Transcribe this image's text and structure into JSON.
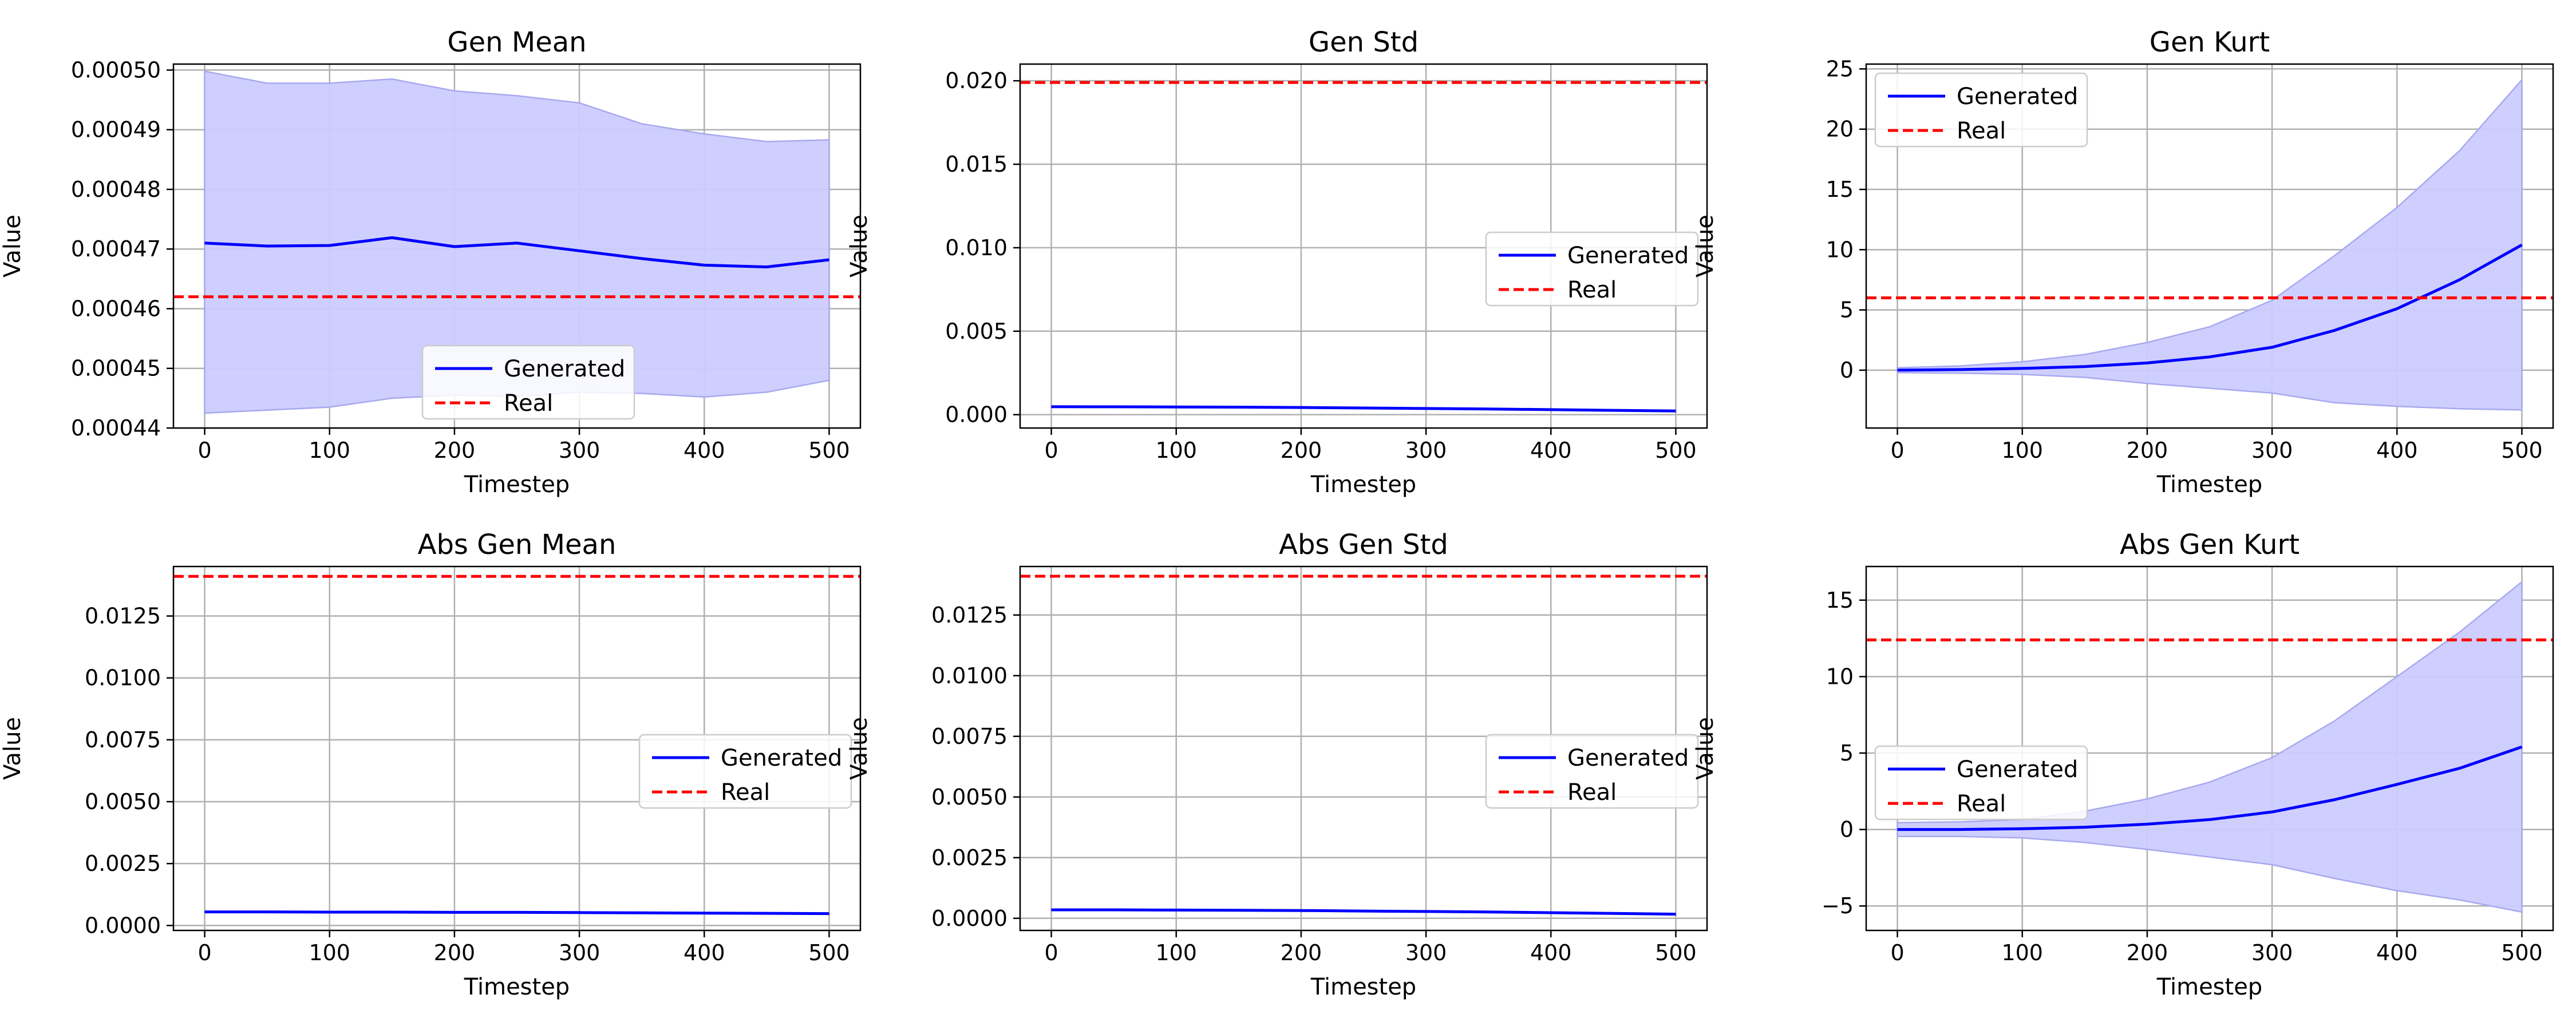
{
  "colors": {
    "generated": "#0000ff",
    "band": "#ccccff",
    "band_edge": "#a8a8f0",
    "real": "#ff0000",
    "grid": "#b0b0b0"
  },
  "chart_data": [
    {
      "type": "line",
      "title": "Gen Mean",
      "xlabel": "Timestep",
      "ylabel": "Value",
      "xlim": [
        -25,
        525
      ],
      "ylim": [
        0.00044,
        0.000501
      ],
      "xticks": [
        0,
        100,
        200,
        300,
        400,
        500
      ],
      "xtick_labels": [
        "0",
        "100",
        "200",
        "300",
        "400",
        "500"
      ],
      "yticks": [
        0.00044,
        0.00045,
        0.00046,
        0.00047,
        0.00048,
        0.00049,
        0.0005
      ],
      "ytick_labels": [
        "0.00044",
        "0.00045",
        "0.00046",
        "0.00047",
        "0.00048",
        "0.00049",
        "0.00050"
      ],
      "grid": true,
      "legend_position": "lower-center",
      "x": [
        0,
        50,
        100,
        150,
        200,
        250,
        300,
        350,
        400,
        450,
        500
      ],
      "series": [
        {
          "name": "Generated",
          "style": "solid",
          "values": [
            0.000471,
            0.0004705,
            0.0004706,
            0.0004719,
            0.0004704,
            0.000471,
            0.0004697,
            0.0004684,
            0.0004673,
            0.000467,
            0.0004682
          ],
          "band_lower": [
            0.0004425,
            0.000443,
            0.0004435,
            0.000445,
            0.0004455,
            0.0004453,
            0.000446,
            0.0004458,
            0.0004452,
            0.000446,
            0.000448
          ],
          "band_upper": [
            0.0004998,
            0.0004978,
            0.0004978,
            0.0004985,
            0.0004965,
            0.0004957,
            0.0004945,
            0.000491,
            0.0004893,
            0.000488,
            0.0004883
          ]
        },
        {
          "name": "Real",
          "style": "dashed",
          "constant": 0.000462
        }
      ]
    },
    {
      "type": "line",
      "title": "Gen Std",
      "xlabel": "Timestep",
      "ylabel": "Value",
      "xlim": [
        -25,
        525
      ],
      "ylim": [
        -0.0008,
        0.021
      ],
      "xticks": [
        0,
        100,
        200,
        300,
        400,
        500
      ],
      "xtick_labels": [
        "0",
        "100",
        "200",
        "300",
        "400",
        "500"
      ],
      "yticks": [
        0.0,
        0.005,
        0.01,
        0.015,
        0.02
      ],
      "ytick_labels": [
        "0.000",
        "0.005",
        "0.010",
        "0.015",
        "0.020"
      ],
      "grid": true,
      "legend_position": "center-right",
      "x": [
        0,
        50,
        100,
        150,
        200,
        250,
        300,
        350,
        400,
        450,
        500
      ],
      "series": [
        {
          "name": "Generated",
          "style": "solid",
          "values": [
            0.00048,
            0.00047,
            0.00046,
            0.00045,
            0.00043,
            0.0004,
            0.00037,
            0.00034,
            0.0003,
            0.00026,
            0.00022
          ],
          "band_lower": [
            0.00046,
            0.00045,
            0.00044,
            0.00043,
            0.00041,
            0.00038,
            0.00035,
            0.00032,
            0.00028,
            0.00024,
            0.0002
          ],
          "band_upper": [
            0.0005,
            0.00049,
            0.00048,
            0.00047,
            0.00045,
            0.00042,
            0.00039,
            0.00036,
            0.00032,
            0.00028,
            0.00024
          ]
        },
        {
          "name": "Real",
          "style": "dashed",
          "constant": 0.0199
        }
      ]
    },
    {
      "type": "line",
      "title": "Gen Kurt",
      "xlabel": "Timestep",
      "ylabel": "Value",
      "xlim": [
        -25,
        525
      ],
      "ylim": [
        -4.8,
        25.4
      ],
      "xticks": [
        0,
        100,
        200,
        300,
        400,
        500
      ],
      "xtick_labels": [
        "0",
        "100",
        "200",
        "300",
        "400",
        "500"
      ],
      "yticks": [
        0,
        5,
        10,
        15,
        20,
        25
      ],
      "ytick_labels": [
        "0",
        "5",
        "10",
        "15",
        "20",
        "25"
      ],
      "grid": true,
      "legend_position": "upper-left",
      "x": [
        0,
        50,
        100,
        150,
        200,
        250,
        300,
        350,
        400,
        450,
        500
      ],
      "series": [
        {
          "name": "Generated",
          "style": "solid",
          "values": [
            0.0,
            0.05,
            0.15,
            0.3,
            0.6,
            1.1,
            1.9,
            3.3,
            5.1,
            7.5,
            10.4
          ],
          "band_lower": [
            -0.2,
            -0.25,
            -0.35,
            -0.6,
            -1.1,
            -1.5,
            -1.9,
            -2.7,
            -3.0,
            -3.2,
            -3.3
          ],
          "band_upper": [
            0.2,
            0.35,
            0.7,
            1.3,
            2.3,
            3.6,
            5.8,
            9.5,
            13.5,
            18.2,
            24.1
          ]
        },
        {
          "name": "Real",
          "style": "dashed",
          "constant": 6.0
        }
      ]
    },
    {
      "type": "line",
      "title": "Abs Gen Mean",
      "xlabel": "Timestep",
      "ylabel": "Value",
      "xlim": [
        -25,
        525
      ],
      "ylim": [
        -0.0002,
        0.0145
      ],
      "xticks": [
        0,
        100,
        200,
        300,
        400,
        500
      ],
      "xtick_labels": [
        "0",
        "100",
        "200",
        "300",
        "400",
        "500"
      ],
      "yticks": [
        0.0,
        0.0025,
        0.005,
        0.0075,
        0.01,
        0.0125
      ],
      "ytick_labels": [
        "0.0000",
        "0.0025",
        "0.0050",
        "0.0075",
        "0.0100",
        "0.0125"
      ],
      "grid": true,
      "legend_position": "center-right",
      "x": [
        0,
        50,
        100,
        150,
        200,
        250,
        300,
        350,
        400,
        450,
        500
      ],
      "series": [
        {
          "name": "Generated",
          "style": "solid",
          "values": [
            0.00055,
            0.00055,
            0.00054,
            0.00054,
            0.00053,
            0.00053,
            0.00052,
            0.00051,
            0.0005,
            0.00049,
            0.00048
          ],
          "band_lower": [
            0.00053,
            0.00053,
            0.00052,
            0.00052,
            0.00051,
            0.00051,
            0.0005,
            0.00049,
            0.00048,
            0.00047,
            0.00046
          ],
          "band_upper": [
            0.00057,
            0.00057,
            0.00056,
            0.00056,
            0.00055,
            0.00055,
            0.00054,
            0.00053,
            0.00052,
            0.00051,
            0.0005
          ]
        },
        {
          "name": "Real",
          "style": "dashed",
          "constant": 0.0141
        }
      ]
    },
    {
      "type": "line",
      "title": "Abs Gen Std",
      "xlabel": "Timestep",
      "ylabel": "Value",
      "xlim": [
        -25,
        525
      ],
      "ylim": [
        -0.0005,
        0.0145
      ],
      "xticks": [
        0,
        100,
        200,
        300,
        400,
        500
      ],
      "xtick_labels": [
        "0",
        "100",
        "200",
        "300",
        "400",
        "500"
      ],
      "yticks": [
        0.0,
        0.0025,
        0.005,
        0.0075,
        0.01,
        0.0125
      ],
      "ytick_labels": [
        "0.0000",
        "0.0025",
        "0.0050",
        "0.0075",
        "0.0100",
        "0.0125"
      ],
      "grid": true,
      "legend_position": "center-right",
      "x": [
        0,
        50,
        100,
        150,
        200,
        250,
        300,
        350,
        400,
        450,
        500
      ],
      "series": [
        {
          "name": "Generated",
          "style": "solid",
          "values": [
            0.00035,
            0.00035,
            0.00034,
            0.00033,
            0.00032,
            0.0003,
            0.00028,
            0.00026,
            0.00023,
            0.0002,
            0.00017
          ],
          "band_lower": [
            0.00033,
            0.00033,
            0.00032,
            0.00031,
            0.0003,
            0.00028,
            0.00026,
            0.00024,
            0.00021,
            0.00018,
            0.00015
          ],
          "band_upper": [
            0.00037,
            0.00037,
            0.00036,
            0.00035,
            0.00034,
            0.00032,
            0.0003,
            0.00028,
            0.00025,
            0.00022,
            0.00019
          ]
        },
        {
          "name": "Real",
          "style": "dashed",
          "constant": 0.0141
        }
      ]
    },
    {
      "type": "line",
      "title": "Abs Gen Kurt",
      "xlabel": "Timestep",
      "ylabel": "Value",
      "xlim": [
        -25,
        525
      ],
      "ylim": [
        -6.6,
        17.2
      ],
      "xticks": [
        0,
        100,
        200,
        300,
        400,
        500
      ],
      "xtick_labels": [
        "0",
        "100",
        "200",
        "300",
        "400",
        "500"
      ],
      "yticks": [
        -5,
        0,
        5,
        10,
        15
      ],
      "ytick_labels": [
        "−5",
        "0",
        "5",
        "10",
        "15"
      ],
      "grid": true,
      "legend_position": "center-left",
      "x": [
        0,
        50,
        100,
        150,
        200,
        250,
        300,
        350,
        400,
        450,
        500
      ],
      "series": [
        {
          "name": "Generated",
          "style": "solid",
          "values": [
            0.0,
            0.0,
            0.05,
            0.15,
            0.35,
            0.65,
            1.15,
            1.95,
            2.95,
            4.0,
            5.4
          ],
          "band_lower": [
            -0.45,
            -0.45,
            -0.55,
            -0.85,
            -1.3,
            -1.8,
            -2.3,
            -3.2,
            -4.0,
            -4.6,
            -5.4
          ],
          "band_upper": [
            0.45,
            0.5,
            0.65,
            1.2,
            2.0,
            3.1,
            4.7,
            7.1,
            10.0,
            12.9,
            16.2
          ]
        },
        {
          "name": "Real",
          "style": "dashed",
          "constant": 12.4
        }
      ]
    }
  ]
}
